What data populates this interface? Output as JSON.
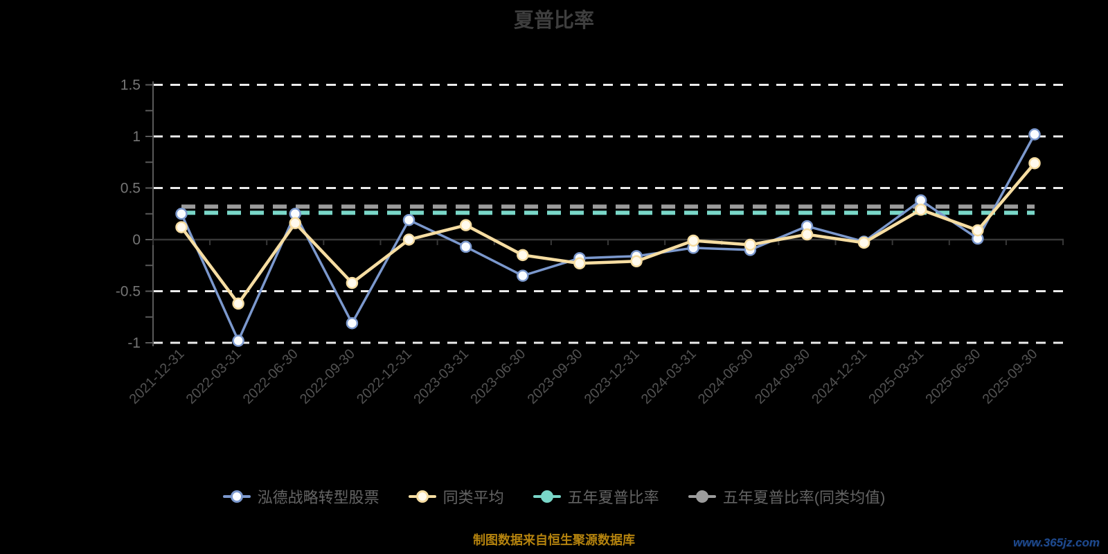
{
  "source_note": "制图数据来自恒生聚源数据库",
  "watermark": "www.365jz.com",
  "colors": {
    "background": "#000000",
    "title": "#3e3e3e",
    "gridline": "#ececec",
    "y_axis_line": "#5a5a5a",
    "zero_axis_line": "#383838",
    "y_tick_label": "#757575",
    "x_tick_label": "#525252",
    "legend_text": "#646464",
    "source_note": "#b5830e",
    "watermark": "#1e4a8f"
  },
  "chart_data": {
    "type": "line",
    "title": "夏普比率",
    "x_labels": [
      "2021-12-31",
      "2022-03-31",
      "2022-06-30",
      "2022-09-30",
      "2022-12-31",
      "2023-03-31",
      "2023-06-30",
      "2023-09-30",
      "2023-12-31",
      "2024-03-31",
      "2024-06-30",
      "2024-09-30",
      "2024-12-31",
      "2025-03-31",
      "2025-06-30",
      "2025-09-30"
    ],
    "ylim": [
      -1,
      1.5
    ],
    "y_ticks": [
      1.5,
      1,
      0.5,
      0,
      -0.5,
      -1
    ],
    "y_minor_tick_step": 0.25,
    "grid": true,
    "gridline_style": "dashed",
    "legend_position": "bottom",
    "x_label_rotation": 45,
    "series": [
      {
        "name": "泓德战略转型股票",
        "color": "#7b98cd",
        "marker": "circle-open",
        "marker_fill": "#fbfdff",
        "line_width": 3.5,
        "values": [
          0.25,
          -0.98,
          0.25,
          -0.81,
          0.19,
          -0.07,
          -0.35,
          -0.18,
          -0.16,
          -0.08,
          -0.1,
          0.13,
          -0.02,
          0.38,
          0.01,
          1.02
        ]
      },
      {
        "name": "同类平均",
        "color": "#f6dda2",
        "marker": "circle-open",
        "marker_fill": "#fffaed",
        "line_width": 4.5,
        "values": [
          0.12,
          -0.62,
          0.16,
          -0.42,
          0.0,
          0.14,
          -0.15,
          -0.23,
          -0.21,
          -0.01,
          -0.05,
          0.05,
          -0.03,
          0.29,
          0.09,
          0.74
        ]
      }
    ],
    "reference_lines": [
      {
        "name": "五年夏普比率",
        "color": "#79d6c8",
        "marker_fill": "#79d6c8",
        "style": "dashed",
        "value": 0.26
      },
      {
        "name": "五年夏普比率(同类均值)",
        "color": "#9c9c9c",
        "marker_fill": "#9c9c9c",
        "style": "dashed",
        "value": 0.32
      }
    ]
  }
}
